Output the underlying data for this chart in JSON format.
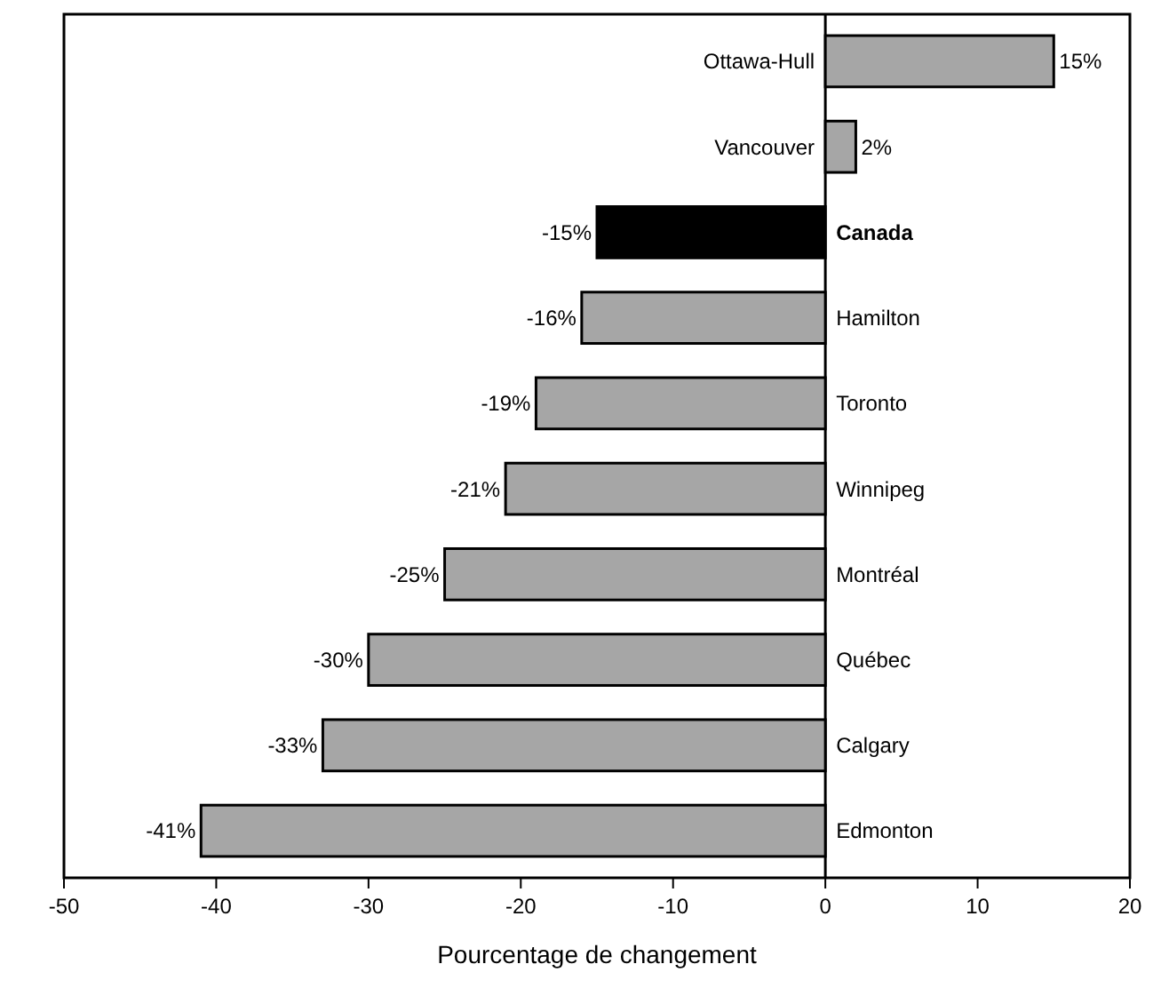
{
  "chart_data": {
    "type": "bar",
    "orientation": "horizontal",
    "xlabel": "Pourcentage de changement",
    "categories": [
      "Ottawa-Hull",
      "Vancouver",
      "Canada",
      "Hamilton",
      "Toronto",
      "Winnipeg",
      "Montréal",
      "Québec",
      "Calgary",
      "Edmonton"
    ],
    "values": [
      15,
      2,
      -15,
      -16,
      -19,
      -21,
      -25,
      -30,
      -33,
      -41
    ],
    "value_labels": [
      "15%",
      "2%",
      "-15%",
      "-16%",
      "-19%",
      "-21%",
      "-25%",
      "-30%",
      "-33%",
      "-41%"
    ],
    "colors": [
      "#a6a6a6",
      "#a6a6a6",
      "#000000",
      "#a6a6a6",
      "#a6a6a6",
      "#a6a6a6",
      "#a6a6a6",
      "#a6a6a6",
      "#a6a6a6",
      "#a6a6a6"
    ],
    "xlim": [
      -50,
      20
    ],
    "xticks": [
      -50,
      -40,
      -30,
      -20,
      -10,
      0,
      10,
      20
    ],
    "grid": false
  }
}
